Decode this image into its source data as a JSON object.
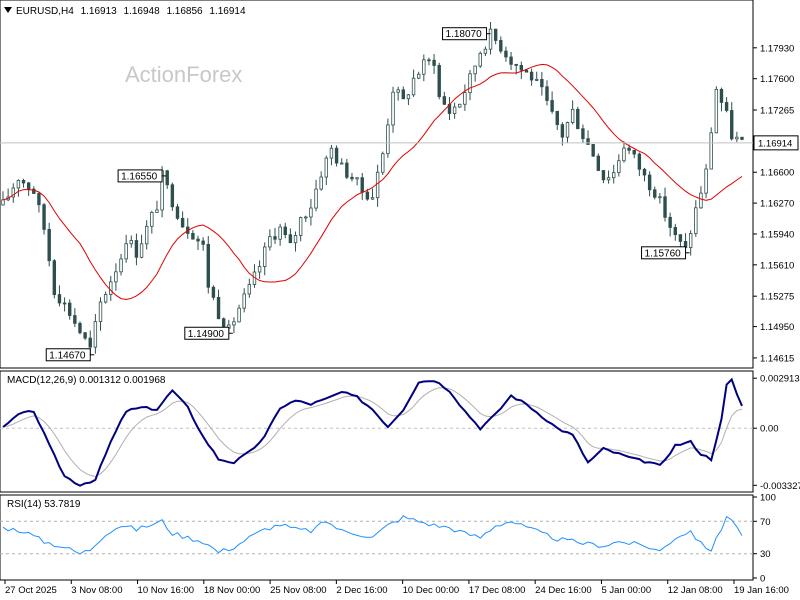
{
  "chart_data": [
    {
      "type": "candlestick",
      "title": "EURUSD,H4",
      "ohlc_readout": [
        "1.16913",
        "1.16948",
        "1.16856",
        "1.16914"
      ],
      "watermark": "ActionForex",
      "current_price": "1.16914",
      "ylim": [
        1.1455,
        1.1827
      ],
      "y_ticks": [
        "1.17930",
        "1.17600",
        "1.17265",
        "1.16600",
        "1.16270",
        "1.15940",
        "1.15610",
        "1.15275",
        "1.14950",
        "1.14615"
      ],
      "x_ticks": [
        "27 Oct 2025",
        "3 Nov 08:00",
        "10 Nov 16:00",
        "18 Nov 00:00",
        "25 Nov 08:00",
        "2 Dec 16:00",
        "10 Dec 00:00",
        "17 Dec 08:00",
        "24 Dec 16:00",
        "5 Jan 00:00",
        "12 Jan 08:00",
        "19 Jan 16:00"
      ],
      "price_path": [
        [
          0,
          1.1625
        ],
        [
          3,
          1.1655
        ],
        [
          6,
          1.164
        ],
        [
          8,
          1.16
        ],
        [
          10,
          1.1535
        ],
        [
          13,
          1.151
        ],
        [
          15,
          1.149
        ],
        [
          17,
          1.147
        ],
        [
          19,
          1.152
        ],
        [
          21,
          1.1545
        ],
        [
          23,
          1.157
        ],
        [
          24,
          1.159
        ],
        [
          26,
          1.1575
        ],
        [
          28,
          1.16
        ],
        [
          30,
          1.1625
        ],
        [
          31,
          1.1655
        ],
        [
          33,
          1.163
        ],
        [
          35,
          1.1605
        ],
        [
          37,
          1.1595
        ],
        [
          39,
          1.158
        ],
        [
          40,
          1.154
        ],
        [
          42,
          1.151
        ],
        [
          44,
          1.149
        ],
        [
          46,
          1.1515
        ],
        [
          48,
          1.1535
        ],
        [
          50,
          1.156
        ],
        [
          52,
          1.159
        ],
        [
          54,
          1.16
        ],
        [
          56,
          1.158
        ],
        [
          58,
          1.161
        ],
        [
          60,
          1.1625
        ],
        [
          62,
          1.166
        ],
        [
          64,
          1.1685
        ],
        [
          66,
          1.1665
        ],
        [
          68,
          1.1655
        ],
        [
          70,
          1.164
        ],
        [
          72,
          1.1635
        ],
        [
          74,
          1.168
        ],
        [
          76,
          1.175
        ],
        [
          78,
          1.1735
        ],
        [
          80,
          1.176
        ],
        [
          82,
          1.1775
        ],
        [
          84,
          1.178
        ],
        [
          85,
          1.174
        ],
        [
          87,
          1.1725
        ],
        [
          89,
          1.1735
        ],
        [
          91,
          1.176
        ],
        [
          93,
          1.179
        ],
        [
          95,
          1.1807
        ],
        [
          97,
          1.1795
        ],
        [
          99,
          1.178
        ],
        [
          101,
          1.177
        ],
        [
          103,
          1.1762
        ],
        [
          105,
          1.1745
        ],
        [
          107,
          1.172
        ],
        [
          109,
          1.17
        ],
        [
          111,
          1.1725
        ],
        [
          113,
          1.17
        ],
        [
          115,
          1.168
        ],
        [
          117,
          1.1655
        ],
        [
          119,
          1.166
        ],
        [
          121,
          1.169
        ],
        [
          123,
          1.1675
        ],
        [
          125,
          1.1655
        ],
        [
          127,
          1.164
        ],
        [
          129,
          1.1615
        ],
        [
          131,
          1.159
        ],
        [
          133,
          1.1576
        ],
        [
          135,
          1.162
        ],
        [
          137,
          1.166
        ],
        [
          139,
          1.175
        ],
        [
          140,
          1.1735
        ],
        [
          141,
          1.172
        ],
        [
          142,
          1.17
        ],
        [
          143,
          1.1695
        ],
        [
          144,
          1.1691
        ]
      ],
      "price_labels": [
        "1.18070",
        "1.16550",
        "1.14900",
        "1.14670",
        "1.15760"
      ]
    },
    {
      "type": "line",
      "title": "MACD(12,26,9) 0.001312 0.001968",
      "ylim": [
        -0.0036,
        0.0031
      ],
      "y_ticks": [
        "0.002913",
        "0.00",
        "-0.003327"
      ],
      "macd_path": [
        [
          0,
          0.0
        ],
        [
          3,
          0.0008
        ],
        [
          6,
          0.001
        ],
        [
          9,
          -0.001
        ],
        [
          12,
          -0.0028
        ],
        [
          15,
          -0.0033
        ],
        [
          18,
          -0.003
        ],
        [
          21,
          -0.0008
        ],
        [
          24,
          0.001
        ],
        [
          27,
          0.0012
        ],
        [
          30,
          0.0011
        ],
        [
          33,
          0.0022
        ],
        [
          36,
          0.0012
        ],
        [
          39,
          -0.0005
        ],
        [
          42,
          -0.0018
        ],
        [
          45,
          -0.002
        ],
        [
          48,
          -0.0014
        ],
        [
          51,
          -0.0005
        ],
        [
          54,
          0.0012
        ],
        [
          57,
          0.0016
        ],
        [
          60,
          0.0014
        ],
        [
          63,
          0.0017
        ],
        [
          66,
          0.0021
        ],
        [
          69,
          0.0018
        ],
        [
          72,
          0.0011
        ],
        [
          75,
          0.0001
        ],
        [
          78,
          0.0011
        ],
        [
          81,
          0.0027
        ],
        [
          84,
          0.0028
        ],
        [
          87,
          0.0022
        ],
        [
          90,
          0.001
        ],
        [
          93,
          0.0
        ],
        [
          96,
          0.0008
        ],
        [
          99,
          0.0019
        ],
        [
          102,
          0.0014
        ],
        [
          105,
          0.0007
        ],
        [
          108,
          0.0
        ],
        [
          111,
          -0.0004
        ],
        [
          114,
          -0.002
        ],
        [
          117,
          -0.0012
        ],
        [
          120,
          -0.0015
        ],
        [
          123,
          -0.0018
        ],
        [
          126,
          -0.002
        ],
        [
          128,
          -0.0022
        ],
        [
          131,
          -0.001
        ],
        [
          134,
          -0.0008
        ],
        [
          136,
          -0.0015
        ],
        [
          138,
          -0.0018
        ],
        [
          140,
          0.0005
        ],
        [
          141,
          0.0025
        ],
        [
          142,
          0.0028
        ],
        [
          143,
          0.002
        ],
        [
          144,
          0.0013
        ]
      ]
    },
    {
      "type": "line",
      "title": "RSI(14) 53.7819",
      "ylim": [
        0,
        100
      ],
      "y_ticks": [
        "100",
        "70",
        "30",
        "0"
      ],
      "levels": [
        70,
        30
      ],
      "rsi_path": [
        [
          0,
          62
        ],
        [
          4,
          58
        ],
        [
          8,
          45
        ],
        [
          12,
          38
        ],
        [
          15,
          30
        ],
        [
          17,
          35
        ],
        [
          20,
          55
        ],
        [
          23,
          65
        ],
        [
          26,
          60
        ],
        [
          29,
          66
        ],
        [
          31,
          70
        ],
        [
          33,
          55
        ],
        [
          36,
          50
        ],
        [
          39,
          45
        ],
        [
          42,
          32
        ],
        [
          45,
          38
        ],
        [
          48,
          50
        ],
        [
          51,
          60
        ],
        [
          54,
          66
        ],
        [
          57,
          60
        ],
        [
          60,
          58
        ],
        [
          63,
          70
        ],
        [
          66,
          58
        ],
        [
          69,
          55
        ],
        [
          72,
          50
        ],
        [
          75,
          65
        ],
        [
          78,
          75
        ],
        [
          81,
          70
        ],
        [
          84,
          65
        ],
        [
          87,
          62
        ],
        [
          90,
          55
        ],
        [
          93,
          50
        ],
        [
          96,
          65
        ],
        [
          99,
          70
        ],
        [
          102,
          62
        ],
        [
          105,
          55
        ],
        [
          108,
          48
        ],
        [
          111,
          45
        ],
        [
          114,
          42
        ],
        [
          117,
          40
        ],
        [
          120,
          45
        ],
        [
          123,
          42
        ],
        [
          126,
          38
        ],
        [
          128,
          33
        ],
        [
          131,
          50
        ],
        [
          134,
          58
        ],
        [
          136,
          42
        ],
        [
          138,
          35
        ],
        [
          140,
          60
        ],
        [
          141,
          78
        ],
        [
          142,
          72
        ],
        [
          143,
          62
        ],
        [
          144,
          54
        ]
      ]
    }
  ],
  "colors": {
    "candle": "#2f4f4f",
    "ma": "#e00000",
    "macd": "#000080",
    "signal": "#b0b0b0",
    "rsi": "#1e90ff",
    "grid": "#c0c0c0"
  }
}
